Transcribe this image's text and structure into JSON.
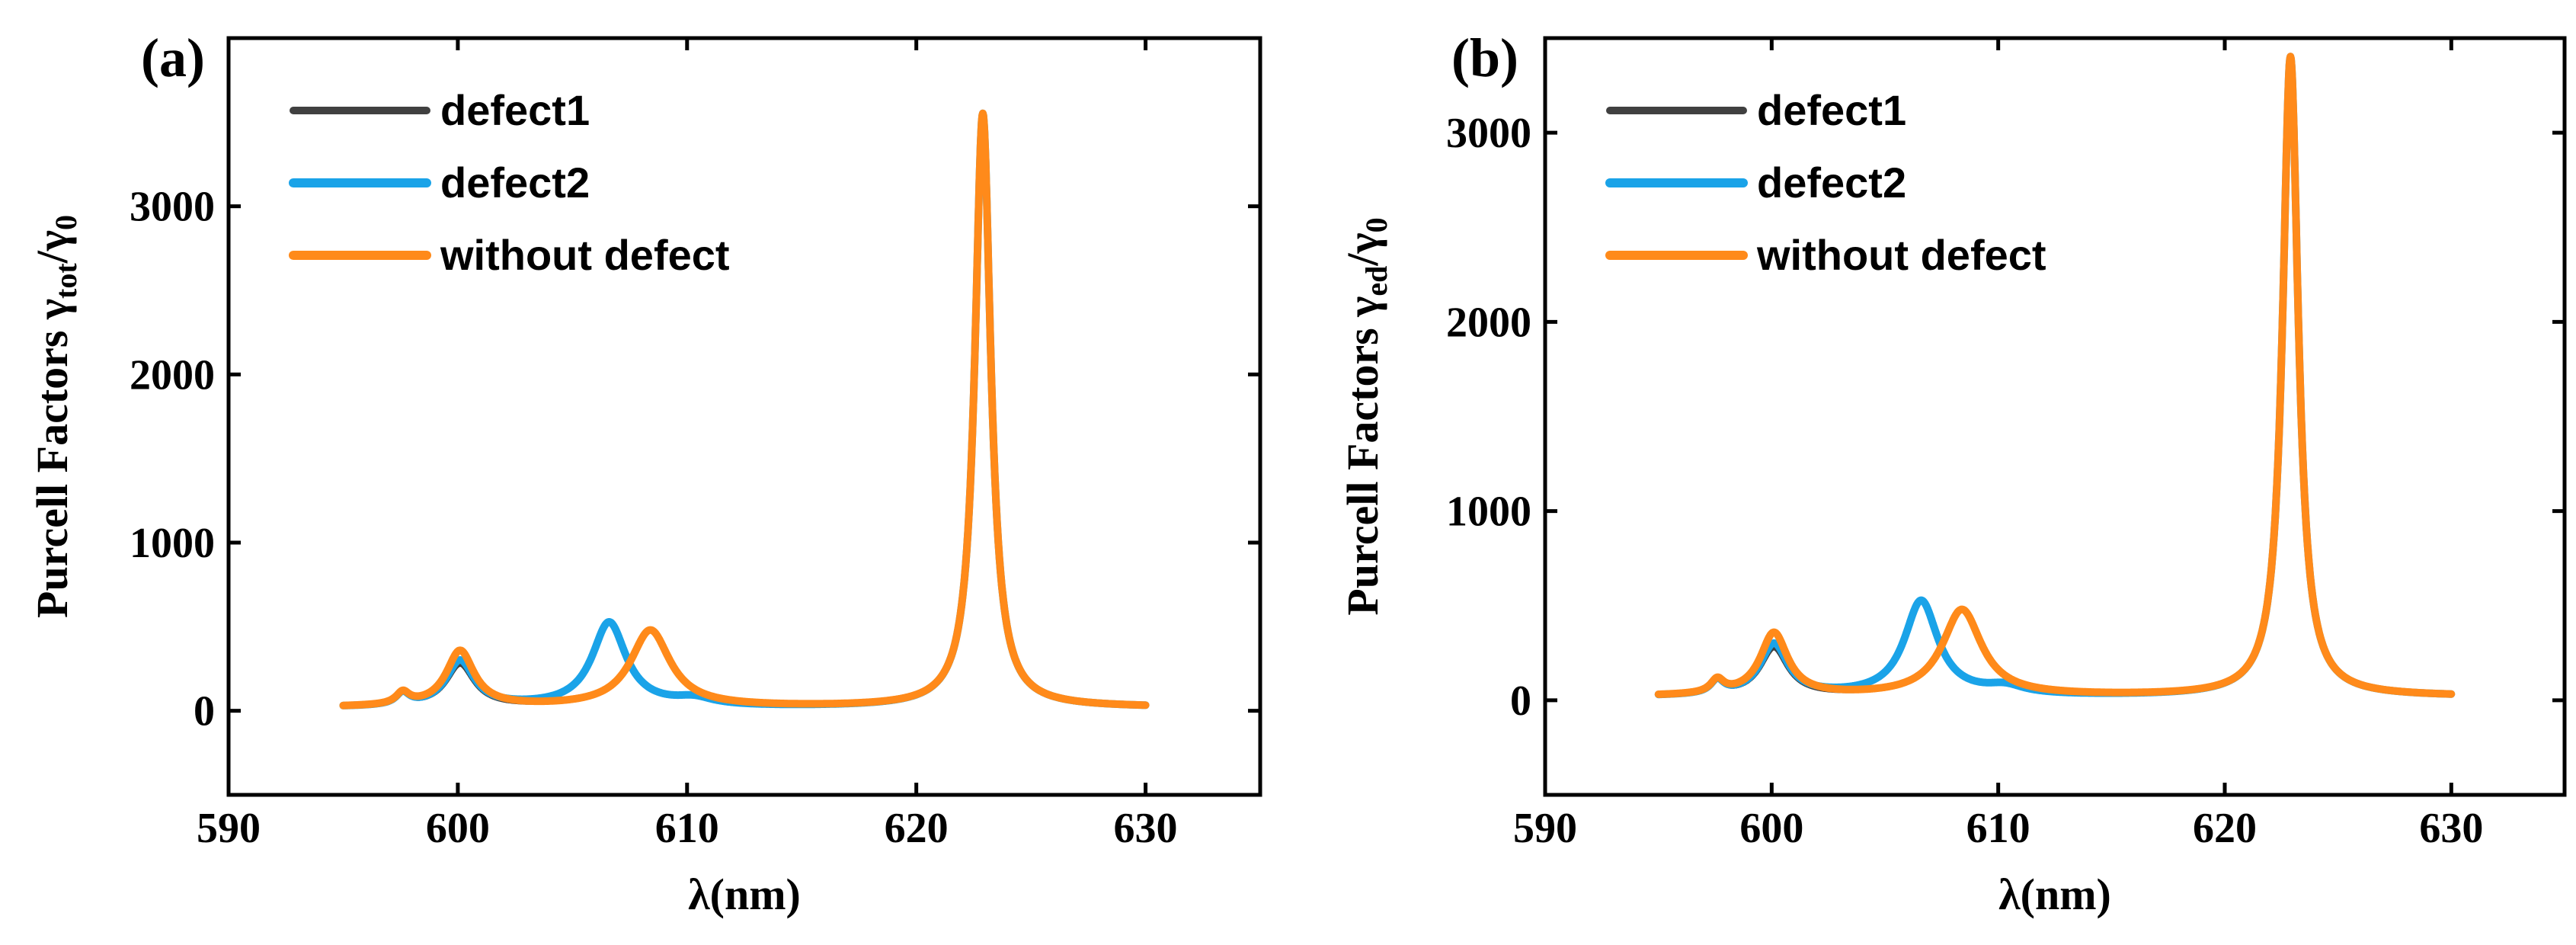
{
  "chart_data": [
    {
      "type": "line",
      "panel_label": "(a)",
      "ylabel_prefix": "Purcell Factors ",
      "ylabel_symbol": "γ",
      "ylabel_sub": "tot",
      "ylabel_slash": "/γ",
      "ylabel_sub2": "0",
      "xlabel": "λ(nm)",
      "xlim": [
        590,
        635
      ],
      "ylim": [
        -500,
        4000
      ],
      "xticks": [
        590,
        600,
        610,
        620,
        630
      ],
      "yticks": [
        0,
        1000,
        2000,
        3000
      ],
      "legend_position": "top-left",
      "peak_height": 3550,
      "series": [
        {
          "name": "defect1",
          "color": "#404040"
        },
        {
          "name": "defect2",
          "color": "#1aa3e8"
        },
        {
          "name": "without defect",
          "color": "#ff8a1a"
        }
      ],
      "x": [
        595,
        596,
        597,
        597.6,
        598,
        599,
        600,
        601,
        602,
        604,
        606,
        606.6,
        607,
        608.4,
        609,
        610,
        612,
        616,
        618,
        620,
        621,
        622,
        622.5,
        622.9,
        623.3,
        624,
        625,
        627,
        630
      ]
    },
    {
      "type": "line",
      "panel_label": "(b)",
      "ylabel_prefix": "Purcell Factors ",
      "ylabel_symbol": "γ",
      "ylabel_sub": "ed",
      "ylabel_slash": "/γ",
      "ylabel_sub2": "0",
      "xlabel": "λ(nm)",
      "xlim": [
        590,
        635
      ],
      "ylim": [
        -500,
        3500
      ],
      "xticks": [
        590,
        600,
        610,
        620,
        630
      ],
      "yticks": [
        0,
        1000,
        2000,
        3000
      ],
      "legend_position": "top-left",
      "peak_height": 3400,
      "series": [
        {
          "name": "defect1",
          "color": "#404040"
        },
        {
          "name": "defect2",
          "color": "#1aa3e8"
        },
        {
          "name": "without defect",
          "color": "#ff8a1a"
        }
      ],
      "x": [
        595,
        596,
        597,
        597.6,
        598,
        599,
        600,
        601,
        602,
        604,
        606,
        606.6,
        607,
        608.4,
        609,
        610,
        612,
        616,
        618,
        620,
        621,
        622,
        622.5,
        622.9,
        623.3,
        624,
        625,
        627,
        630
      ]
    }
  ]
}
